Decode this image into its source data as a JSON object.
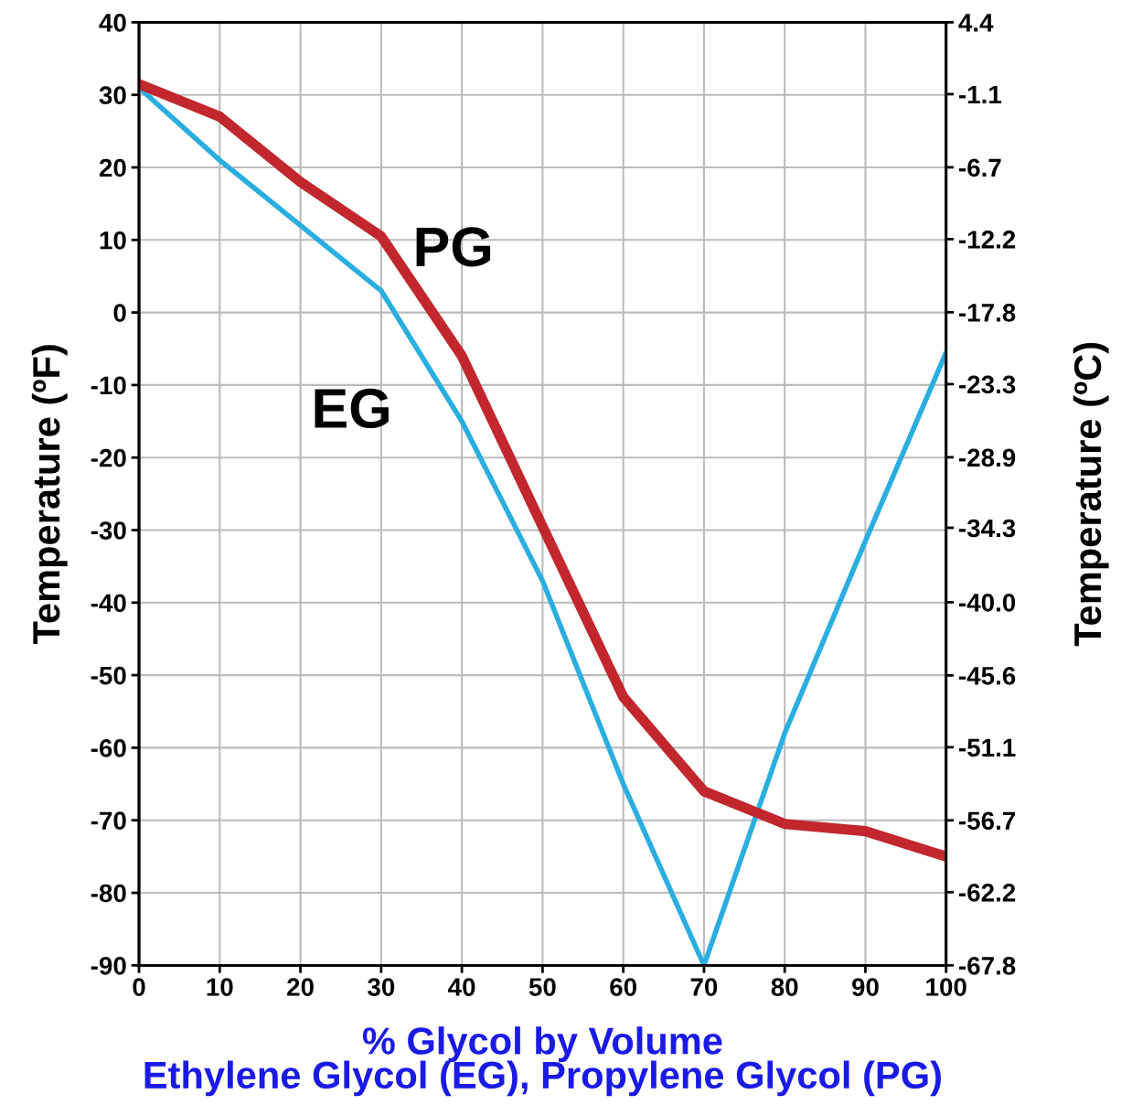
{
  "chart_data": {
    "type": "line",
    "xlabel": "% Glycol by Volume\nEthylene Glycol (EG), Propylene Glycol (PG)",
    "ylabel": "Temperature (ºF)",
    "y2label": "Temperature (ºC)",
    "x": [
      0,
      10,
      20,
      30,
      40,
      50,
      60,
      70,
      80,
      90,
      100
    ],
    "series": [
      {
        "name": "EG",
        "color": "#2aaee0",
        "values": [
          31,
          21,
          12,
          3,
          -15,
          -37,
          -65,
          -90,
          -58,
          -31.5,
          -5.5
        ]
      },
      {
        "name": "PG",
        "color": "#c1272d",
        "values": [
          31.5,
          27,
          18,
          10.5,
          -6,
          -29.5,
          -53,
          -66,
          -70.5,
          -71.5,
          -75
        ]
      }
    ],
    "xlim": [
      0,
      100
    ],
    "xticks": [
      0,
      10,
      20,
      30,
      40,
      50,
      60,
      70,
      80,
      90,
      100
    ],
    "ylim": [
      -90,
      40
    ],
    "yticks": [
      -90,
      -80,
      -70,
      -60,
      -50,
      -40,
      -30,
      -20,
      -10,
      0,
      10,
      20,
      30,
      40
    ],
    "y2lim": [
      -67.8,
      4.4
    ],
    "y2ticks": [
      -67.8,
      -62.2,
      -56.7,
      -51.1,
      -45.6,
      {
        "value": -40,
        "label": "-40.0"
      },
      -34.3,
      -28.9,
      -23.3,
      -17.8,
      -12.2,
      -6.7,
      -1.1,
      4.4
    ],
    "grid": true,
    "legend": false,
    "marker": "none",
    "line_style": "solid"
  }
}
